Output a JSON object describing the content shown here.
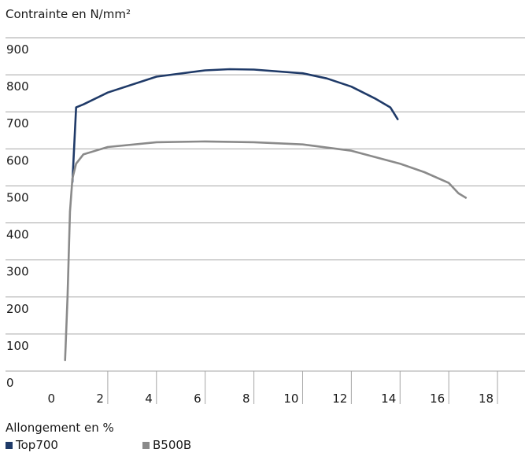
{
  "chart_data": {
    "type": "line",
    "ylabel": "Contrainte en N/mm²",
    "xlabel": "Allongement en %",
    "xlim": [
      0,
      19
    ],
    "ylim": [
      0,
      900
    ],
    "x_ticks": [
      0,
      2,
      4,
      6,
      8,
      10,
      12,
      14,
      16,
      18
    ],
    "y_ticks": [
      0,
      100,
      200,
      300,
      400,
      500,
      600,
      700,
      800,
      900
    ],
    "grid": "horizontal",
    "legend_position": "bottom-left",
    "series": [
      {
        "name": "Top700",
        "color": "#1f3a68",
        "points": [
          [
            0.55,
            510
          ],
          [
            0.7,
            712
          ],
          [
            1,
            720
          ],
          [
            2,
            752
          ],
          [
            4,
            795
          ],
          [
            6,
            812
          ],
          [
            7,
            815
          ],
          [
            8,
            814
          ],
          [
            10,
            804
          ],
          [
            11,
            790
          ],
          [
            12,
            768
          ],
          [
            13,
            735
          ],
          [
            13.6,
            712
          ],
          [
            13.9,
            680
          ]
        ]
      },
      {
        "name": "B500B",
        "color": "#8a8a8a",
        "points": [
          [
            0.25,
            30
          ],
          [
            0.35,
            200
          ],
          [
            0.45,
            430
          ],
          [
            0.55,
            520
          ],
          [
            0.7,
            560
          ],
          [
            1,
            585
          ],
          [
            2,
            605
          ],
          [
            4,
            618
          ],
          [
            6,
            620
          ],
          [
            8,
            618
          ],
          [
            10,
            612
          ],
          [
            12,
            595
          ],
          [
            14,
            560
          ],
          [
            15,
            537
          ],
          [
            16,
            508
          ],
          [
            16.4,
            480
          ],
          [
            16.7,
            468
          ]
        ]
      }
    ]
  }
}
